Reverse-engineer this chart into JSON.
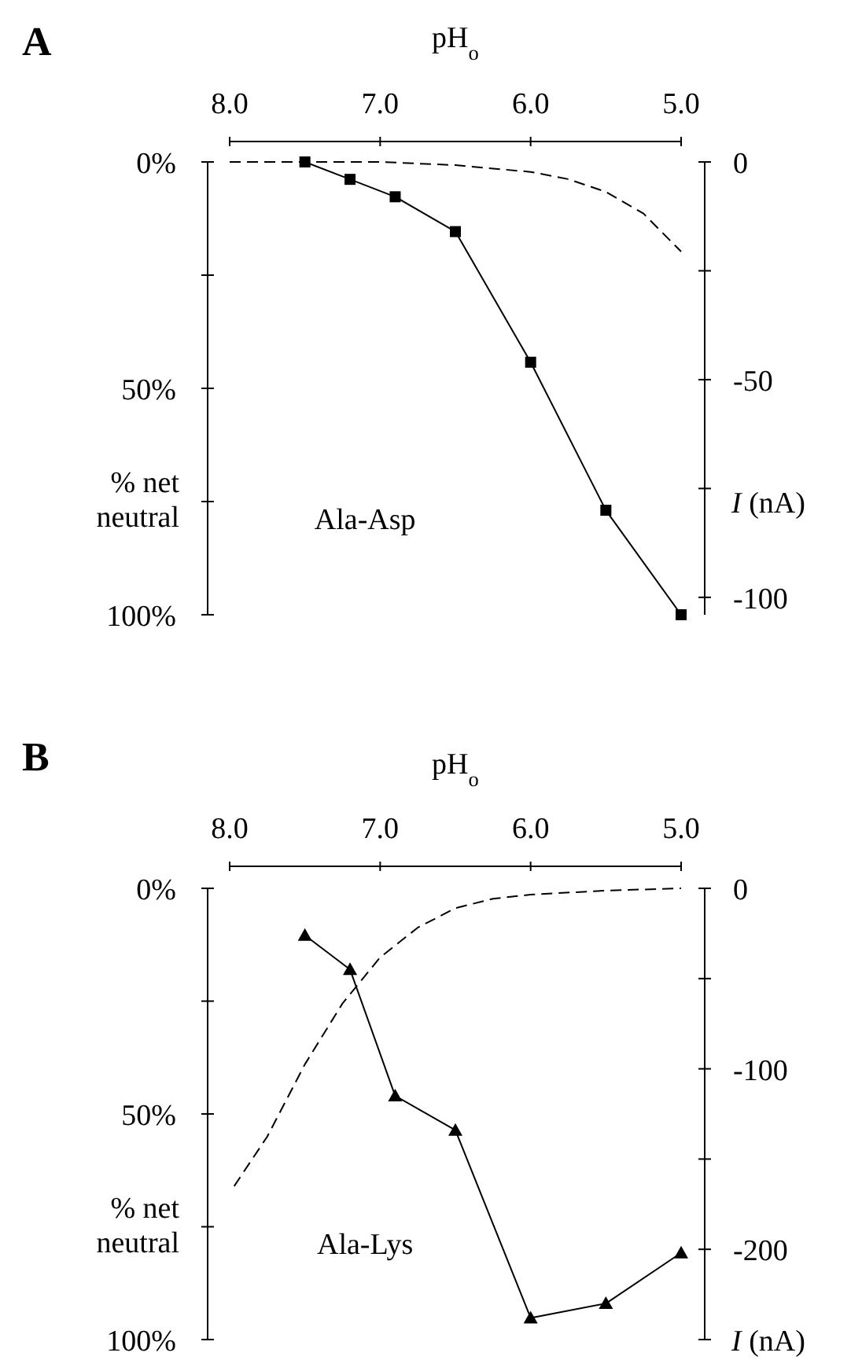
{
  "chart_data": [
    {
      "type": "line",
      "title": "A",
      "xlabel": "pH$_{o}$",
      "ylabel": "% net neutral",
      "y2label": "I (nA)",
      "xlim": [
        8.0,
        5.0
      ],
      "xticks": [
        {
          "value": 8,
          "label": "8.0"
        },
        {
          "value": 7,
          "label": "7.0"
        },
        {
          "value": 6,
          "label": "6.0"
        },
        {
          "value": 5,
          "label": "5.0"
        }
      ],
      "ylim": [
        100,
        0
      ],
      "yticks": [
        {
          "value": 0,
          "label": "0%"
        },
        {
          "value": 25,
          "label": null
        },
        {
          "value": 50,
          "label": "50%"
        },
        {
          "value": 75,
          "label": null
        },
        {
          "value": 100,
          "label": "100%"
        }
      ],
      "y2lim": [
        -104,
        0
      ],
      "y2ticks": [
        0,
        {
          "value": -25,
          "label": null
        },
        -50,
        {
          "value": -75,
          "label": null
        },
        -100
      ],
      "grid": false,
      "annotations": [
        "Ala-Asp"
      ],
      "series": [
        {
          "color": "#000000",
          "line_style": "dashed",
          "marker": "none",
          "x": [
            8.0,
            7.5,
            7.0,
            6.5,
            6.0,
            5.75,
            5.5,
            5.25,
            5.0
          ],
          "values": [
            0,
            0,
            0,
            0.7,
            2.2,
            3.8,
            6.6,
            11.4,
            19.8
          ]
        },
        {
          "color": "#000000",
          "line_style": "solid",
          "marker": "square",
          "axis": "y2",
          "x": [
            7.5,
            7.2,
            6.9,
            6.5,
            6.0,
            5.5,
            5.0
          ],
          "values": [
            0,
            -4,
            -8,
            -16,
            -46,
            -80,
            -104
          ]
        }
      ]
    },
    {
      "type": "line",
      "title": "B",
      "xlabel": "pH$_{o}$",
      "ylabel": "% net neutral",
      "y2label": "I (nA)",
      "xlim": [
        8.0,
        5.0
      ],
      "xticks": [
        {
          "value": 8,
          "label": "8.0"
        },
        {
          "value": 7,
          "label": "7.0"
        },
        {
          "value": 6,
          "label": "6.0"
        },
        {
          "value": 5,
          "label": "5.0"
        }
      ],
      "ylim": [
        100,
        0
      ],
      "yticks": [
        {
          "value": 0,
          "label": "0%"
        },
        {
          "value": 25,
          "label": null
        },
        {
          "value": 50,
          "label": "50%"
        },
        {
          "value": 75,
          "label": null
        },
        {
          "value": 100,
          "label": "100%"
        }
      ],
      "y2lim": [
        -250,
        0
      ],
      "y2ticks": [
        0,
        {
          "value": -50,
          "label": null
        },
        -100,
        {
          "value": -150,
          "label": null
        },
        -200,
        {
          "value": -250,
          "label": null
        }
      ],
      "grid": false,
      "annotations": [
        "Ala-Lys"
      ],
      "series": [
        {
          "color": "#000000",
          "line_style": "dashed",
          "marker": "none",
          "x": [
            7.97,
            7.75,
            7.5,
            7.25,
            7.0,
            6.75,
            6.5,
            6.25,
            6.0,
            5.5,
            5.0
          ],
          "values": [
            66,
            55,
            39,
            25.5,
            15.3,
            8.7,
            4.4,
            2.3,
            1.4,
            0.5,
            0
          ]
        },
        {
          "color": "#000000",
          "line_style": "solid",
          "marker": "triangle",
          "axis": "y2",
          "x": [
            7.5,
            7.2,
            6.9,
            6.5,
            6.0,
            5.5,
            5.0
          ],
          "values": [
            -26,
            -45,
            -115,
            -134,
            -238,
            -230,
            -202
          ]
        }
      ]
    }
  ]
}
